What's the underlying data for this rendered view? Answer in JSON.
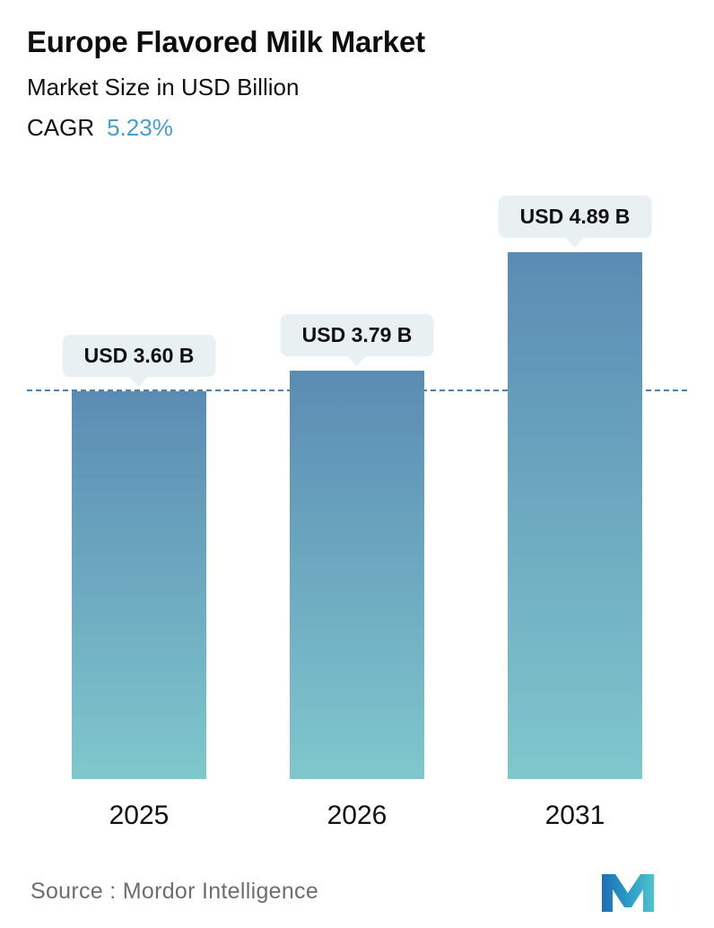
{
  "header": {
    "title": "Europe Flavored Milk Market",
    "subtitle": "Market Size in USD Billion",
    "cagr_label": "CAGR",
    "cagr_value": "5.23%"
  },
  "chart_data": {
    "type": "bar",
    "title": "Europe Flavored Milk Market",
    "subtitle": "Market Size in USD Billion",
    "unit": "USD Billion",
    "categories": [
      "2025",
      "2026",
      "2031"
    ],
    "values": [
      3.6,
      3.79,
      4.89
    ],
    "data_labels": [
      "USD 3.60 B",
      "USD 3.79 B",
      "USD 4.89 B"
    ],
    "cagr_percent": 5.23,
    "ylim": [
      0,
      5.5
    ],
    "grid": "off",
    "legend": "none",
    "reference_value": 3.6,
    "reference_line_style": "dashed",
    "colors": {
      "accent": "#459fca",
      "bar_gradient_top": "#5a8cb3",
      "bar_gradient_bottom": "#7fc7cd",
      "callout_bg": "#e9f0f2",
      "dashed_line": "#4f81a8"
    }
  },
  "footer": {
    "source": "Source :  Mordor Intelligence",
    "logo": "mordor-intelligence-logo"
  }
}
